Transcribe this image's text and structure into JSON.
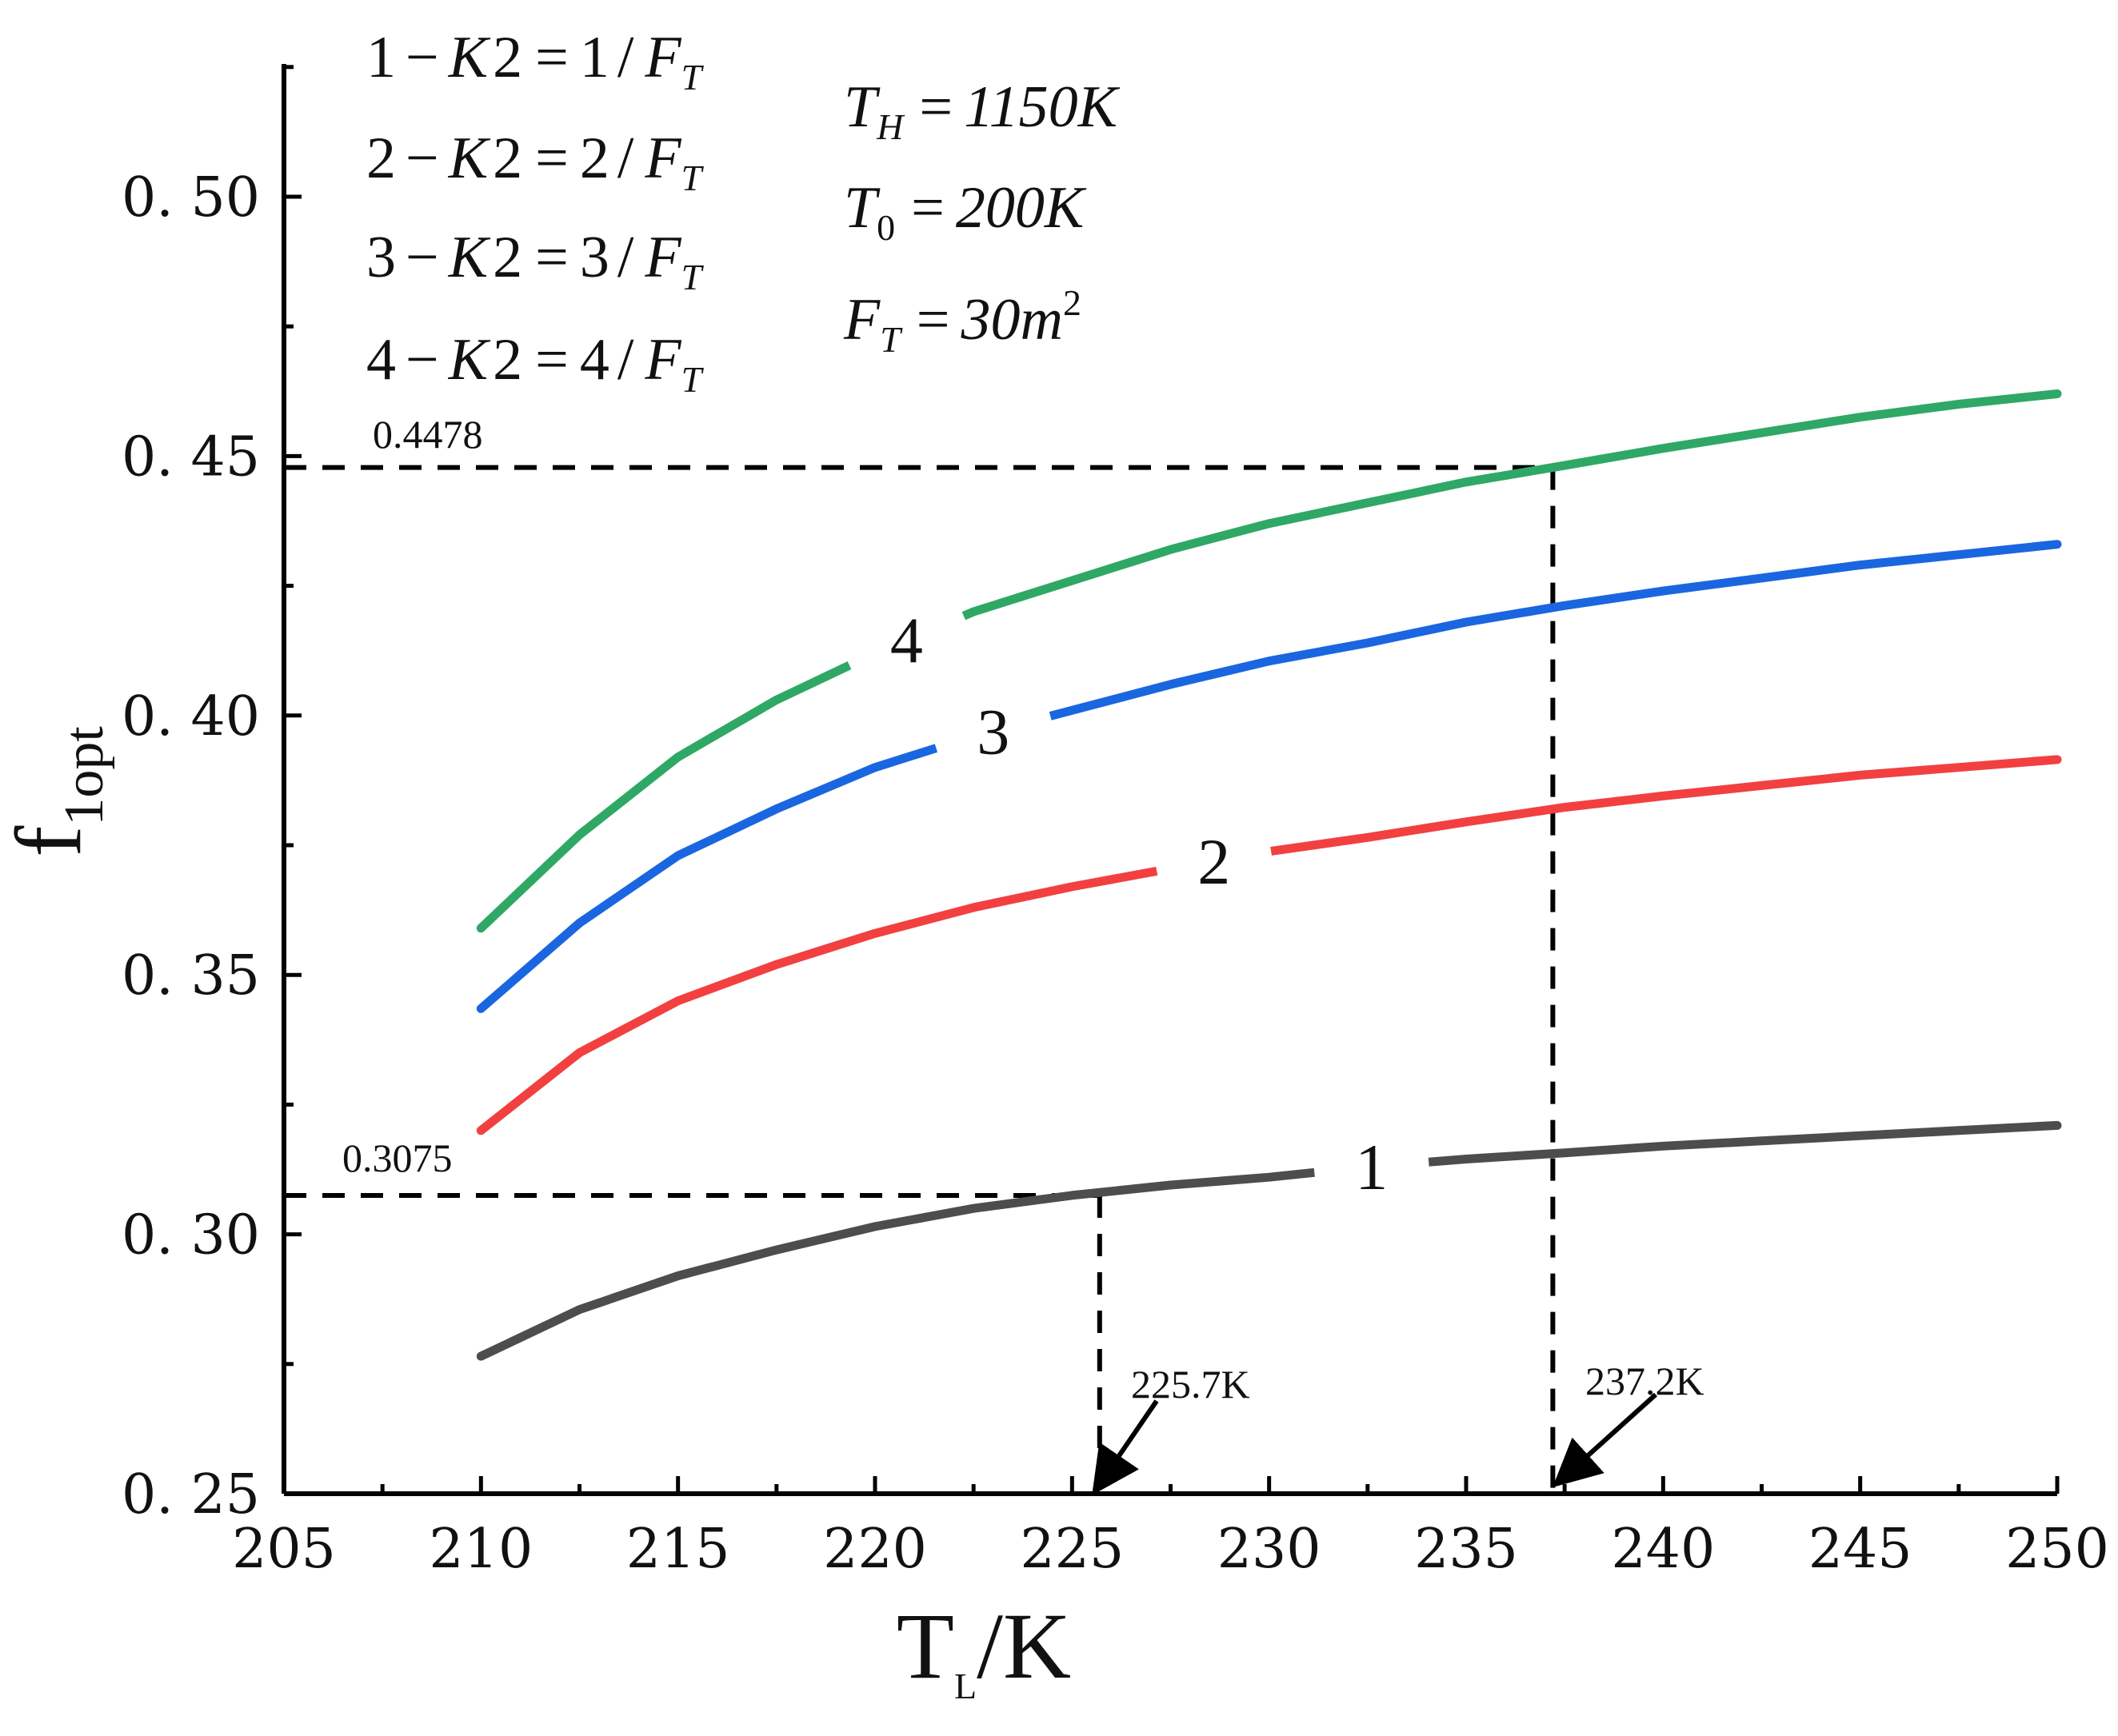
{
  "chart_data": {
    "type": "line",
    "xlabel": {
      "main": "T",
      "sub": "L",
      "rest": "/K"
    },
    "ylabel": {
      "main": "f",
      "sub": "1opt"
    },
    "xlim": [
      205,
      250
    ],
    "ylim": [
      0.25,
      0.525
    ],
    "x_ticks": [
      205,
      210,
      215,
      220,
      225,
      230,
      235,
      240,
      245,
      250
    ],
    "x_tick_labels": [
      "205",
      "210",
      "215",
      "220",
      "225",
      "230",
      "235",
      "240",
      "245",
      "250"
    ],
    "y_ticks": [
      0.25,
      0.3,
      0.35,
      0.4,
      0.45,
      0.5
    ],
    "y_tick_labels": [
      "0. 25",
      "0. 30",
      "0. 35",
      "0. 40",
      "0. 45",
      "0. 50"
    ],
    "x": [
      210,
      212.5,
      215,
      217.5,
      220,
      222.5,
      225,
      227.5,
      230,
      232.5,
      235,
      237.5,
      240,
      242.5,
      245,
      247.5,
      250
    ],
    "series": [
      {
        "name": "1",
        "color": "#4d4d4d",
        "label_x": 232.6,
        "values": [
          0.2765,
          0.2855,
          0.292,
          0.297,
          0.3015,
          0.305,
          0.3075,
          0.3095,
          0.311,
          0.313,
          0.3145,
          0.3157,
          0.317,
          0.318,
          0.319,
          0.32,
          0.321
        ]
      },
      {
        "name": "2",
        "color": "#f24040",
        "label_x": 228.6,
        "values": [
          0.32,
          0.335,
          0.345,
          0.352,
          0.358,
          0.363,
          0.367,
          0.3705,
          0.3738,
          0.3765,
          0.3795,
          0.3823,
          0.3845,
          0.3865,
          0.3885,
          0.39,
          0.3915
        ]
      },
      {
        "name": "3",
        "color": "#1a66e0",
        "label_x": 223.0,
        "values": [
          0.3435,
          0.36,
          0.373,
          0.382,
          0.39,
          0.396,
          0.401,
          0.406,
          0.4105,
          0.414,
          0.418,
          0.4212,
          0.424,
          0.4265,
          0.429,
          0.431,
          0.433
        ]
      },
      {
        "name": "4",
        "color": "#2fa866",
        "label_x": 220.8,
        "values": [
          0.359,
          0.377,
          0.392,
          0.403,
          0.412,
          0.42,
          0.426,
          0.432,
          0.437,
          0.441,
          0.445,
          0.4482,
          0.4515,
          0.4545,
          0.4575,
          0.46,
          0.462
        ]
      }
    ],
    "reference_lines": [
      {
        "y": 0.3075,
        "x": 225.7,
        "y_label": "0.3075",
        "x_label": "225.7K"
      },
      {
        "y": 0.4478,
        "x": 237.2,
        "y_label": "0.4478",
        "x_label": "237.2K"
      }
    ],
    "legend": [
      {
        "num": "1",
        "k": "K",
        "two": "2",
        "rhs": "1",
        "f": "F",
        "fsub": "T"
      },
      {
        "num": "2",
        "k": "K",
        "two": "2",
        "rhs": "2",
        "f": "F",
        "fsub": "T"
      },
      {
        "num": "3",
        "k": "K",
        "two": "2",
        "rhs": "3",
        "f": "F",
        "fsub": "T"
      },
      {
        "num": "4",
        "k": "K",
        "two": "2",
        "rhs": "4",
        "f": "F",
        "fsub": "T"
      }
    ],
    "parameters": [
      {
        "sym": "T",
        "sub": "H",
        "value": "1150K",
        "sup": ""
      },
      {
        "sym": "T",
        "sub": "0",
        "value": "200K",
        "sup": ""
      },
      {
        "sym": "F",
        "sub": "T",
        "value": "30m",
        "sup": "2"
      }
    ]
  }
}
